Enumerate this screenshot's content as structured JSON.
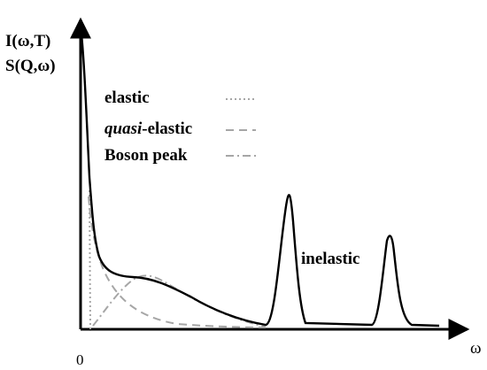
{
  "axes": {
    "y_label_line1": "I(ω,T)",
    "y_label_line2": "S(Q,ω)",
    "x_label": "ω",
    "origin_label": "0"
  },
  "legend": {
    "items": [
      {
        "prefix": "",
        "italic": "",
        "rest": "elastic",
        "style": "dotted"
      },
      {
        "prefix": "",
        "italic": "quasi",
        "rest": "-elastic",
        "style": "dashed"
      },
      {
        "prefix": "",
        "italic": "",
        "rest": "Boson peak",
        "style": "dash-dot"
      }
    ]
  },
  "annotations": {
    "inelastic": "inelastic"
  },
  "colors": {
    "axis": "#000000",
    "main_curve": "#000000",
    "component_curves": "#a6a6a6"
  }
}
